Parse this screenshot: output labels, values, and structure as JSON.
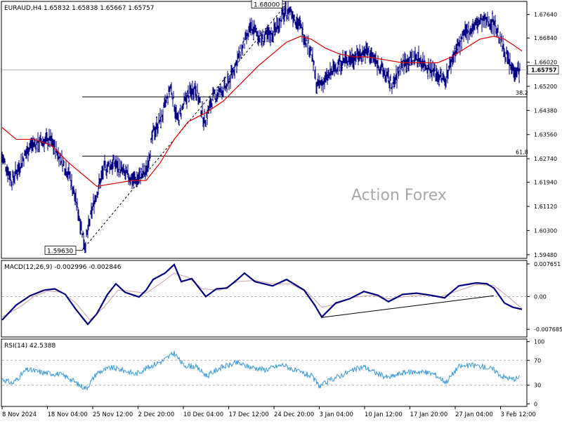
{
  "header": {
    "symbol_info": "EURAUD,H4  1.65832  1.65838  1.65667  1.65757"
  },
  "watermark": "Action Forex",
  "colors": {
    "bars": "#000080",
    "ma": "#e00000",
    "macd": "#000080",
    "macd_signal": "#c8a0a0",
    "rsi": "#3a9ad9",
    "frame": "#000000",
    "grid": "#b0b0b0"
  },
  "chart_data": [
    {
      "type": "ohlc",
      "panel": "price",
      "timeframe": "H4",
      "y_ticks": [
        "1.67640",
        "1.66840",
        "1.66020",
        "1.65200",
        "1.64380",
        "1.63560",
        "1.62740",
        "1.61940",
        "1.61120",
        "1.60300",
        "1.59480"
      ],
      "y_tick_values": [
        1.6764,
        1.6684,
        1.6602,
        1.652,
        1.6438,
        1.6356,
        1.6274,
        1.6194,
        1.6112,
        1.603,
        1.5948
      ],
      "ylim": [
        1.5938,
        1.6806
      ],
      "current_price": "1.65757",
      "current_price_value": 1.65757,
      "fib_levels": [
        {
          "label": "38.2",
          "value": 1.6484
        },
        {
          "label": "61.8",
          "value": 1.6283
        }
      ],
      "swing_labels": [
        {
          "text": "1.68000",
          "value": 1.68
        },
        {
          "text": "1.59630",
          "value": 1.5963
        }
      ],
      "x_tick_labels": [
        "8 Nov 2024",
        "18 Nov 04:00",
        "25 Nov 12:00",
        "2 Dec 20:00",
        "10 Dec 04:00",
        "17 Dec 12:00",
        "24 Dec 20:00",
        "3 Jan 04:00",
        "10 Jan 12:00",
        "17 Jan 20:00",
        "27 Jan 04:00",
        "3 Feb 12:00"
      ],
      "close_path": [
        [
          0,
          1.628
        ],
        [
          14,
          1.62
        ],
        [
          40,
          1.632
        ],
        [
          68,
          1.634
        ],
        [
          96,
          1.622
        ],
        [
          108,
          1.61
        ],
        [
          118,
          1.598
        ],
        [
          130,
          1.612
        ],
        [
          145,
          1.624
        ],
        [
          160,
          1.626
        ],
        [
          175,
          1.622
        ],
        [
          190,
          1.62
        ],
        [
          205,
          1.623
        ],
        [
          215,
          1.636
        ],
        [
          228,
          1.642
        ],
        [
          240,
          1.652
        ],
        [
          250,
          1.64
        ],
        [
          262,
          1.648
        ],
        [
          275,
          1.652
        ],
        [
          288,
          1.64
        ],
        [
          300,
          1.648
        ],
        [
          320,
          1.652
        ],
        [
          340,
          1.664
        ],
        [
          355,
          1.672
        ],
        [
          370,
          1.668
        ],
        [
          385,
          1.67
        ],
        [
          400,
          1.676
        ],
        [
          410,
          1.678
        ],
        [
          425,
          1.672
        ],
        [
          440,
          1.664
        ],
        [
          448,
          1.652
        ],
        [
          460,
          1.654
        ],
        [
          480,
          1.66
        ],
        [
          500,
          1.662
        ],
        [
          520,
          1.664
        ],
        [
          540,
          1.658
        ],
        [
          556,
          1.652
        ],
        [
          570,
          1.66
        ],
        [
          590,
          1.662
        ],
        [
          610,
          1.658
        ],
        [
          630,
          1.654
        ],
        [
          645,
          1.664
        ],
        [
          660,
          1.67
        ],
        [
          680,
          1.674
        ],
        [
          700,
          1.674
        ],
        [
          712,
          1.666
        ],
        [
          725,
          1.658
        ],
        [
          737,
          1.6575
        ]
      ],
      "moving_average": [
        [
          0,
          1.638
        ],
        [
          20,
          1.634
        ],
        [
          45,
          1.634
        ],
        [
          70,
          1.632
        ],
        [
          95,
          1.626
        ],
        [
          115,
          1.622
        ],
        [
          135,
          1.618
        ],
        [
          160,
          1.619
        ],
        [
          185,
          1.62
        ],
        [
          205,
          1.62
        ],
        [
          225,
          1.626
        ],
        [
          245,
          1.634
        ],
        [
          265,
          1.64
        ],
        [
          290,
          1.643
        ],
        [
          315,
          1.647
        ],
        [
          340,
          1.653
        ],
        [
          365,
          1.659
        ],
        [
          385,
          1.663
        ],
        [
          405,
          1.667
        ],
        [
          425,
          1.669
        ],
        [
          440,
          1.668
        ],
        [
          460,
          1.665
        ],
        [
          480,
          1.663
        ],
        [
          500,
          1.662
        ],
        [
          520,
          1.662
        ],
        [
          545,
          1.661
        ],
        [
          570,
          1.66
        ],
        [
          595,
          1.66
        ],
        [
          620,
          1.66
        ],
        [
          640,
          1.662
        ],
        [
          660,
          1.665
        ],
        [
          680,
          1.668
        ],
        [
          700,
          1.669
        ],
        [
          715,
          1.668
        ],
        [
          728,
          1.666
        ],
        [
          740,
          1.664
        ]
      ]
    },
    {
      "type": "line",
      "panel": "macd",
      "title": "MACD(12,26,9) -0.002996 -0.002846",
      "y_ticks": [
        "0.007651",
        "0.00",
        "-0.007685"
      ],
      "y_tick_values": [
        0.007651,
        0.0,
        -0.007685
      ],
      "ylim": [
        -0.0093,
        0.0083
      ],
      "series": [
        {
          "values": [
            [
              0,
              -0.0055
            ],
            [
              20,
              -0.002
            ],
            [
              40,
              0.0002
            ],
            [
              60,
              0.0015
            ],
            [
              75,
              0.0018
            ],
            [
              90,
              0.0005
            ],
            [
              105,
              -0.003
            ],
            [
              122,
              -0.0065
            ],
            [
              135,
              -0.004
            ],
            [
              150,
              0.0005
            ],
            [
              162,
              0.003
            ],
            [
              175,
              0.001
            ],
            [
              195,
              -0.0001
            ],
            [
              205,
              0.0015
            ],
            [
              215,
              0.004
            ],
            [
              232,
              0.0055
            ],
            [
              245,
              0.0075
            ],
            [
              255,
              0.0035
            ],
            [
              270,
              0.0042
            ],
            [
              290,
              0.0
            ],
            [
              305,
              0.0018
            ],
            [
              320,
              0.002
            ],
            [
              335,
              0.004
            ],
            [
              345,
              0.0055
            ],
            [
              360,
              0.0035
            ],
            [
              385,
              0.0025
            ],
            [
              405,
              0.004
            ],
            [
              430,
              0.0015
            ],
            [
              445,
              -0.002
            ],
            [
              455,
              -0.0048
            ],
            [
              475,
              -0.0015
            ],
            [
              495,
              -0.0005
            ],
            [
              515,
              0.0012
            ],
            [
              535,
              0.0003
            ],
            [
              550,
              -0.0012
            ],
            [
              570,
              0.0005
            ],
            [
              590,
              0.0008
            ],
            [
              610,
              0.0003
            ],
            [
              630,
              -0.0003
            ],
            [
              650,
              0.0025
            ],
            [
              675,
              0.0032
            ],
            [
              690,
              0.003
            ],
            [
              700,
              0.002
            ],
            [
              715,
              -0.0015
            ],
            [
              727,
              -0.0025
            ],
            [
              740,
              -0.003
            ]
          ]
        },
        {
          "values": [
            [
              0,
              -0.0048
            ],
            [
              25,
              -0.0025
            ],
            [
              45,
              0.0
            ],
            [
              65,
              0.0013
            ],
            [
              85,
              0.001
            ],
            [
              105,
              -0.0015
            ],
            [
              125,
              -0.0055
            ],
            [
              145,
              -0.0025
            ],
            [
              165,
              0.0015
            ],
            [
              185,
              0.0012
            ],
            [
              205,
              0.0008
            ],
            [
              225,
              0.003
            ],
            [
              245,
              0.0055
            ],
            [
              265,
              0.0045
            ],
            [
              285,
              0.0018
            ],
            [
              310,
              0.0015
            ],
            [
              335,
              0.0035
            ],
            [
              360,
              0.0038
            ],
            [
              385,
              0.003
            ],
            [
              410,
              0.003
            ],
            [
              435,
              0.001
            ],
            [
              455,
              -0.0025
            ],
            [
              475,
              -0.0018
            ],
            [
              500,
              -0.0002
            ],
            [
              525,
              0.0003
            ],
            [
              550,
              -0.0005
            ],
            [
              575,
              0.0
            ],
            [
              600,
              0.0004
            ],
            [
              625,
              0.0
            ],
            [
              650,
              0.0014
            ],
            [
              675,
              0.0028
            ],
            [
              700,
              0.0026
            ],
            [
              720,
              0.0
            ],
            [
              740,
              -0.0028
            ]
          ]
        }
      ],
      "trendline": [
        [
          455,
          -0.0049
        ],
        [
          700,
          0.0002
        ]
      ]
    },
    {
      "type": "line",
      "panel": "rsi",
      "title": "RSI(14) 42.5388",
      "y_ticks": [
        "100",
        "70",
        "30",
        "0"
      ],
      "y_tick_values": [
        100,
        70,
        30,
        0
      ],
      "ylim": [
        -3,
        103
      ],
      "levels": [
        70,
        30
      ],
      "series": [
        {
          "values": [
            [
              0,
              40
            ],
            [
              15,
              33
            ],
            [
              35,
              55
            ],
            [
              60,
              50
            ],
            [
              80,
              48
            ],
            [
              95,
              42
            ],
            [
              110,
              30
            ],
            [
              120,
              25
            ],
            [
              135,
              50
            ],
            [
              155,
              58
            ],
            [
              170,
              55
            ],
            [
              190,
              48
            ],
            [
              210,
              60
            ],
            [
              230,
              70
            ],
            [
              245,
              82
            ],
            [
              258,
              62
            ],
            [
              275,
              60
            ],
            [
              292,
              45
            ],
            [
              310,
              58
            ],
            [
              335,
              66
            ],
            [
              350,
              60
            ],
            [
              375,
              55
            ],
            [
              400,
              63
            ],
            [
              420,
              52
            ],
            [
              440,
              45
            ],
            [
              452,
              28
            ],
            [
              470,
              40
            ],
            [
              495,
              52
            ],
            [
              515,
              60
            ],
            [
              535,
              48
            ],
            [
              550,
              42
            ],
            [
              570,
              50
            ],
            [
              595,
              52
            ],
            [
              615,
              48
            ],
            [
              632,
              35
            ],
            [
              650,
              60
            ],
            [
              670,
              62
            ],
            [
              685,
              60
            ],
            [
              700,
              55
            ],
            [
              712,
              44
            ],
            [
              725,
              40
            ],
            [
              740,
              42.5
            ]
          ]
        }
      ]
    }
  ]
}
